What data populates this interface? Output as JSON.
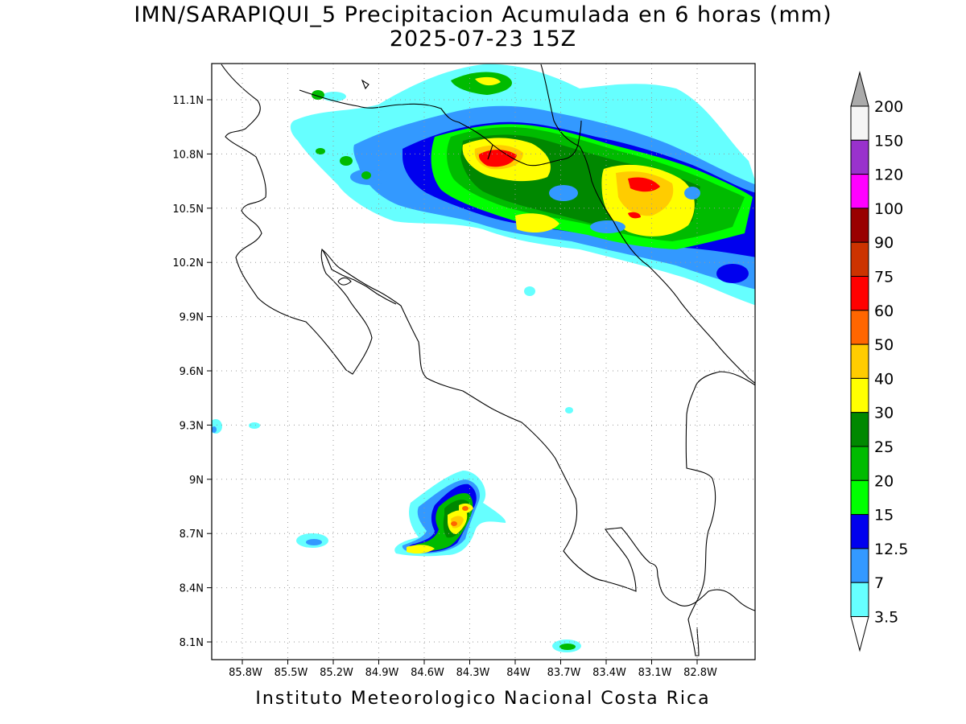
{
  "title_line1": "IMN/SARAPIQUI_5 Precipitacion Acumulada en 6 horas (mm)",
  "title_line2": "2025-07-23 15Z",
  "footer": "Instituto Meteorologico Nacional Costa Rica",
  "lat_ticks": [
    "11.1N",
    "10.8N",
    "10.5N",
    "10.2N",
    "9.9N",
    "9.6N",
    "9.3N",
    "9N",
    "8.7N",
    "8.4N",
    "8.1N"
  ],
  "lon_ticks": [
    "85.8W",
    "85.5W",
    "85.2W",
    "84.9W",
    "84.6W",
    "84.3W",
    "84W",
    "83.7W",
    "83.4W",
    "83.1W",
    "82.8W"
  ],
  "colorbar": {
    "labels": [
      "200",
      "150",
      "120",
      "100",
      "90",
      "75",
      "60",
      "50",
      "40",
      "30",
      "25",
      "20",
      "15",
      "12.5",
      "7",
      "3.5"
    ],
    "colors": [
      "#f5f5f5",
      "#9932cc",
      "#ff00ff",
      "#990000",
      "#cc3300",
      "#ff0000",
      "#ff6600",
      "#ffcc00",
      "#ffff00",
      "#008800",
      "#00bb00",
      "#00ff00",
      "#0000ee",
      "#3399ff",
      "#66ffff"
    ],
    "over_color": "#aaaaaa",
    "under_color": "#ffffff"
  },
  "map_extent": {
    "lon_min": -86.0,
    "lon_max": -82.65,
    "lat_min": 8.02,
    "lat_max": 11.3
  },
  "precip_colors": {
    "c3_5": "#66ffff",
    "c7": "#3399ff",
    "c12_5": "#0000ee",
    "c15": "#00ff00",
    "c20": "#00bb00",
    "c25": "#008800",
    "c30": "#ffff00",
    "c40": "#ffcc00",
    "c50": "#ff6600",
    "c60": "#ff0000"
  }
}
